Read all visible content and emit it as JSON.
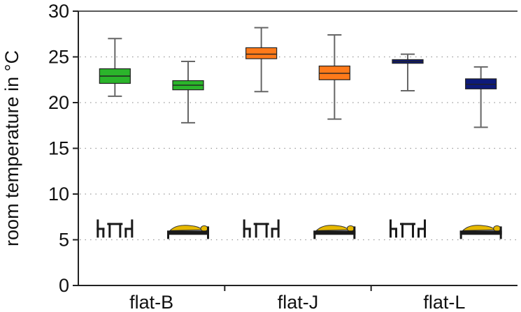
{
  "chart_data": {
    "type": "box",
    "ylabel": "room temperature in °C",
    "ylim": [
      0,
      30
    ],
    "yticks": [
      0,
      5,
      10,
      15,
      20,
      25,
      30
    ],
    "grid": "horizontal dotted",
    "categories": [
      "flat-B",
      "flat-J",
      "flat-L"
    ],
    "room_icons": [
      "living-room-icon",
      "bedroom-icon"
    ],
    "boxes": [
      {
        "category": "flat-B",
        "room": "living-room-icon",
        "color": "#2bb52b",
        "whisker_low": 20.7,
        "q1": 22.1,
        "median": 22.9,
        "q3": 23.7,
        "whisker_high": 27.0
      },
      {
        "category": "flat-B",
        "room": "bedroom-icon",
        "color": "#2bb52b",
        "whisker_low": 17.8,
        "q1": 21.4,
        "median": 21.9,
        "q3": 22.4,
        "whisker_high": 24.5
      },
      {
        "category": "flat-J",
        "room": "living-room-icon",
        "color": "#ff7a1a",
        "whisker_low": 21.2,
        "q1": 24.8,
        "median": 25.3,
        "q3": 26.0,
        "whisker_high": 28.2
      },
      {
        "category": "flat-J",
        "room": "bedroom-icon",
        "color": "#ff7a1a",
        "whisker_low": 18.2,
        "q1": 22.5,
        "median": 23.2,
        "q3": 24.0,
        "whisker_high": 27.4
      },
      {
        "category": "flat-L",
        "room": "living-room-icon",
        "color": "#0d1a7a",
        "whisker_low": 21.3,
        "q1": 24.3,
        "median": 24.5,
        "q3": 24.7,
        "whisker_high": 25.3
      },
      {
        "category": "flat-L",
        "room": "bedroom-icon",
        "color": "#0d1a7a",
        "whisker_low": 17.3,
        "q1": 21.5,
        "median": 22.0,
        "q3": 22.6,
        "whisker_high": 23.9
      }
    ]
  }
}
